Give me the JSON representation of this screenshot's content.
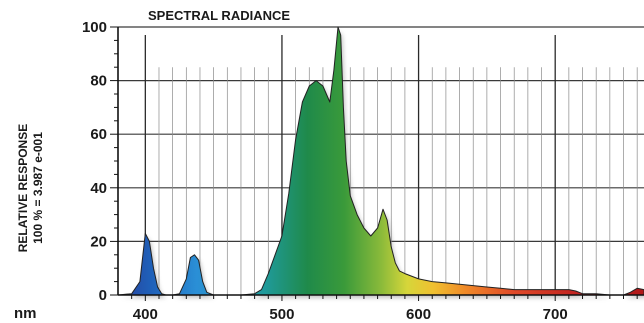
{
  "chart_data": {
    "type": "area",
    "title": "SPECTRAL RADIANCE",
    "ylabel": "RELATIVE RESPONSE",
    "ylabel_sub": "100 % = 3.987 e-001",
    "xlabel": "nm",
    "xlim": [
      380,
      765
    ],
    "ylim": [
      0,
      100
    ],
    "x_ticks": [
      400,
      500,
      600,
      700
    ],
    "y_ticks": [
      0,
      20,
      40,
      60,
      80,
      100
    ],
    "x_tick_labels": [
      "400",
      "500",
      "600",
      "700"
    ],
    "y_tick_labels": [
      "0",
      "20",
      "40",
      "60",
      "80",
      "100"
    ],
    "grid": true,
    "fill": "visible-spectrum-gradient",
    "series": [
      {
        "x": [
          380,
          390,
          396,
          400,
          403,
          406,
          409,
          412,
          415,
          420,
          425,
          430,
          433,
          436,
          439,
          442,
          445,
          450,
          460,
          470,
          480,
          485,
          490,
          495,
          500,
          505,
          510,
          515,
          520,
          525,
          530,
          535,
          538,
          541,
          543,
          545,
          547,
          550,
          555,
          560,
          565,
          570,
          574,
          577,
          580,
          583,
          586,
          590,
          600,
          610,
          620,
          630,
          640,
          650,
          660,
          670,
          680,
          690,
          700,
          705,
          710,
          715,
          720,
          730,
          740,
          750,
          755,
          760,
          765
        ],
        "y": [
          0,
          0.5,
          5,
          23,
          20,
          10,
          3,
          0.5,
          0,
          0,
          0.5,
          6,
          14,
          15,
          13,
          5,
          1,
          0,
          0,
          0,
          0.5,
          2,
          8,
          15,
          22,
          38,
          58,
          72,
          78,
          80,
          78,
          72,
          84,
          100,
          97,
          70,
          50,
          37,
          30,
          25,
          22,
          25,
          32,
          28,
          18,
          12,
          9,
          8,
          6,
          5,
          4.5,
          4,
          3.5,
          3,
          2.5,
          2,
          2,
          2,
          2,
          2,
          2,
          1.5,
          0.5,
          0.5,
          0,
          0,
          1,
          2.5,
          2
        ]
      }
    ]
  }
}
